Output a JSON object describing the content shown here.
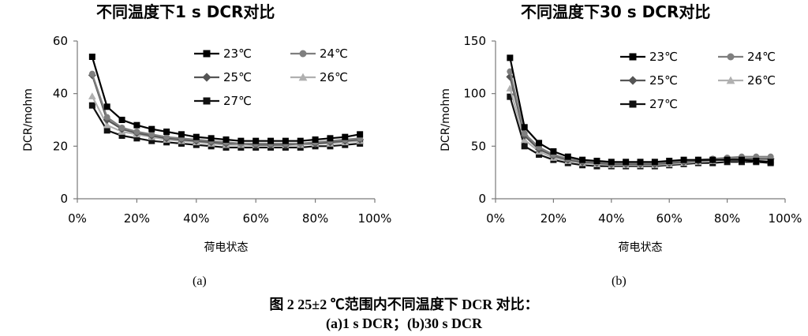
{
  "caption": {
    "line1": "图 2    25±2 ℃范围内不同温度下 DCR 对比：",
    "line2": "(a)1 s DCR；(b)30 s DCR"
  },
  "chart_data": [
    {
      "type": "line",
      "sublabel": "(a)",
      "title": "不同温度下1 s DCR对比",
      "xlabel": "荷电状态",
      "ylabel": "DCR/mohm",
      "xlim": [
        0,
        100
      ],
      "ylim": [
        0,
        60
      ],
      "xticks": [
        "0%",
        "20%",
        "40%",
        "60%",
        "80%",
        "100%"
      ],
      "xtick_values": [
        0,
        20,
        40,
        60,
        80,
        100
      ],
      "yticks": [
        "0",
        "20",
        "40",
        "60"
      ],
      "ytick_values": [
        0,
        20,
        40,
        60
      ],
      "grid": false,
      "legend_position": "top-right",
      "x": [
        5,
        10,
        15,
        20,
        25,
        30,
        35,
        40,
        45,
        50,
        55,
        60,
        65,
        70,
        75,
        80,
        85,
        90,
        95
      ],
      "series": [
        {
          "name": "23℃",
          "color": "#000000",
          "marker": "square",
          "values": [
            54,
            35,
            30,
            28,
            26.5,
            25.5,
            24.5,
            23.5,
            23,
            22.5,
            22,
            22,
            22,
            22,
            22,
            22.5,
            23,
            23.5,
            24.5
          ]
        },
        {
          "name": "24℃",
          "color": "#7f7f7f",
          "marker": "circle",
          "values": [
            47.5,
            31,
            27,
            25.5,
            24.5,
            23.5,
            23,
            22.5,
            22,
            21.5,
            21,
            21,
            21,
            21,
            21,
            21.5,
            22,
            22.5,
            23
          ]
        },
        {
          "name": "25℃",
          "color": "#555555",
          "marker": "diamond",
          "values": [
            47,
            30,
            26.5,
            25,
            24,
            23,
            22.5,
            22,
            21.5,
            21,
            21,
            20.5,
            20.5,
            20.5,
            21,
            21,
            21.5,
            22,
            22.5
          ]
        },
        {
          "name": "26℃",
          "color": "#b0b0b0",
          "marker": "triangle",
          "values": [
            39,
            28,
            25.5,
            24.5,
            23.5,
            22.5,
            22,
            21.5,
            21,
            20.5,
            20.5,
            20.5,
            20.5,
            20.5,
            20.5,
            21,
            21,
            21.5,
            22
          ]
        },
        {
          "name": "27℃",
          "color": "#111111",
          "marker": "square",
          "values": [
            35.5,
            26,
            24,
            23,
            22,
            21.5,
            21,
            20.5,
            20,
            19.5,
            19.5,
            19.5,
            19.5,
            19.5,
            19.5,
            20,
            20,
            20.5,
            21
          ]
        }
      ]
    },
    {
      "type": "line",
      "sublabel": "(b)",
      "title": "不同温度下30 s DCR对比",
      "xlabel": "荷电状态",
      "ylabel": "DCR/mohm",
      "xlim": [
        0,
        100
      ],
      "ylim": [
        0,
        150
      ],
      "xticks": [
        "0%",
        "20%",
        "40%",
        "60%",
        "80%",
        "100%"
      ],
      "xtick_values": [
        0,
        20,
        40,
        60,
        80,
        100
      ],
      "yticks": [
        "0",
        "50",
        "100",
        "150"
      ],
      "ytick_values": [
        0,
        50,
        100,
        150
      ],
      "grid": false,
      "legend_position": "top-right",
      "x": [
        5,
        10,
        15,
        20,
        25,
        30,
        35,
        40,
        45,
        50,
        55,
        60,
        65,
        70,
        75,
        80,
        85,
        90,
        95
      ],
      "series": [
        {
          "name": "23℃",
          "color": "#000000",
          "marker": "square",
          "values": [
            134,
            68,
            53,
            45,
            40,
            37,
            36,
            35,
            35,
            35,
            35,
            36,
            37,
            37,
            37,
            37,
            37,
            36,
            35
          ]
        },
        {
          "name": "24℃",
          "color": "#7f7f7f",
          "marker": "circle",
          "values": [
            121,
            62,
            49,
            42,
            38,
            36,
            35,
            34,
            34,
            34,
            34,
            35,
            36,
            37,
            38,
            39,
            40,
            40,
            40
          ]
        },
        {
          "name": "25℃",
          "color": "#555555",
          "marker": "diamond",
          "values": [
            116,
            60,
            47,
            41,
            37,
            35,
            34,
            33,
            33,
            33,
            33,
            34,
            35,
            36,
            37,
            38,
            38,
            38,
            38
          ]
        },
        {
          "name": "26℃",
          "color": "#b0b0b0",
          "marker": "triangle",
          "values": [
            105,
            56,
            45,
            39,
            36,
            34,
            33,
            32,
            32,
            32,
            32,
            33,
            34,
            35,
            36,
            37,
            37,
            37,
            37
          ]
        },
        {
          "name": "27℃",
          "color": "#111111",
          "marker": "square",
          "values": [
            97,
            50,
            42,
            37,
            34,
            32,
            31,
            31,
            31,
            31,
            31,
            32,
            33,
            34,
            34,
            35,
            35,
            35,
            34
          ]
        }
      ]
    }
  ]
}
